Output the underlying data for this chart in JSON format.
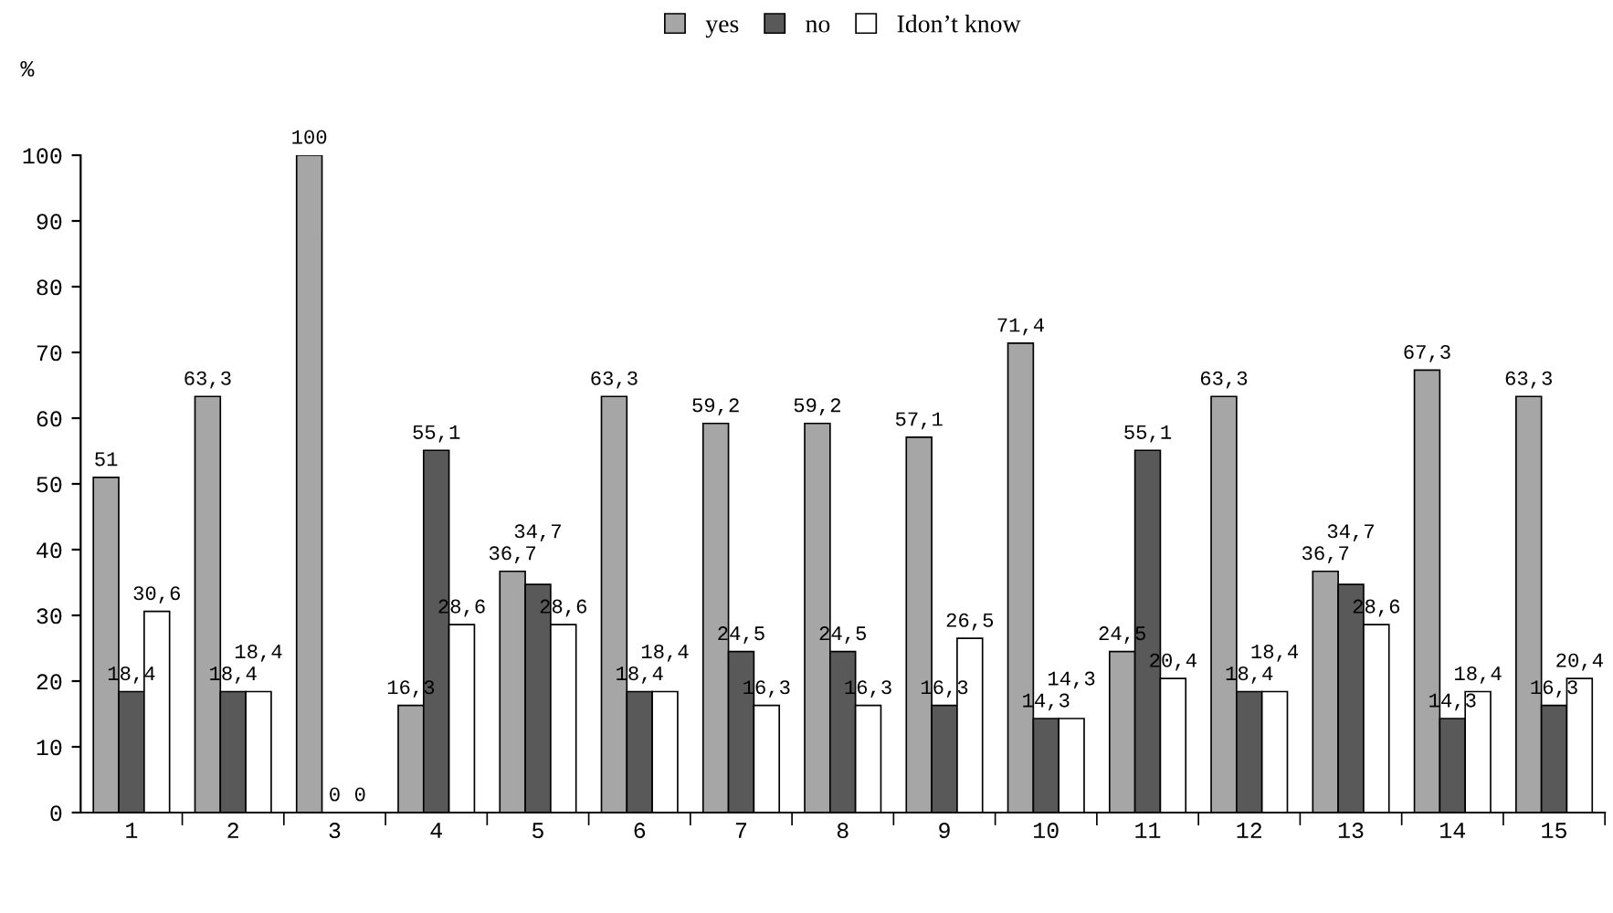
{
  "chart_data": {
    "type": "bar",
    "ylabel": "%",
    "categories": [
      "1",
      "2",
      "3",
      "4",
      "5",
      "6",
      "7",
      "8",
      "9",
      "10",
      "11",
      "12",
      "13",
      "14",
      "15"
    ],
    "series": [
      {
        "name": "yes",
        "color": "#a6a6a6",
        "values": [
          51,
          63.3,
          100,
          16.3,
          36.7,
          63.3,
          59.2,
          59.2,
          57.1,
          71.4,
          24.5,
          63.3,
          36.7,
          67.3,
          63.3
        ],
        "value_labels": [
          "51",
          "63,3",
          "100",
          "16,3",
          "36,7",
          "63,3",
          "59,2",
          "59,2",
          "57,1",
          "71,4",
          "24,5",
          "63,3",
          "36,7",
          "67,3",
          "63,3"
        ]
      },
      {
        "name": "no",
        "color": "#595959",
        "values": [
          18.4,
          18.4,
          0,
          55.1,
          34.7,
          18.4,
          24.5,
          24.5,
          16.3,
          14.3,
          55.1,
          18.4,
          34.7,
          14.3,
          16.3
        ],
        "value_labels": [
          "18,4",
          "18,4",
          "0",
          "55,1",
          "34,7",
          "18,4",
          "24,5",
          "24,5",
          "16,3",
          "14,3",
          "55,1",
          "18,4",
          "34,7",
          "14,3",
          "16,3"
        ]
      },
      {
        "name": "Idon’t know",
        "color": "#ffffff",
        "values": [
          30.6,
          18.4,
          0,
          28.6,
          28.6,
          18.4,
          16.3,
          16.3,
          26.5,
          14.3,
          20.4,
          18.4,
          28.6,
          18.4,
          20.4
        ],
        "value_labels": [
          "30,6",
          "18,4",
          "0",
          "28,6",
          "28,6",
          "18,4",
          "16,3",
          "16,3",
          "26,5",
          "14,3",
          "20,4",
          "18,4",
          "28,6",
          "18,4",
          "20,4"
        ]
      }
    ],
    "ylim": [
      0,
      100
    ],
    "yticks": [
      0,
      10,
      20,
      30,
      40,
      50,
      60,
      70,
      80,
      90,
      100
    ],
    "grid": false,
    "legend": "top"
  }
}
